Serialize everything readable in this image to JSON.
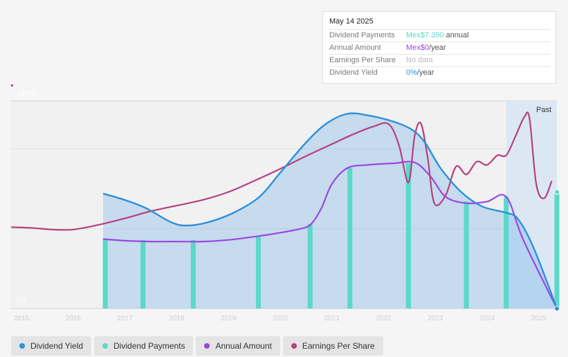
{
  "tooltip": {
    "date": "May 14 2025",
    "rows": [
      {
        "label": "Dividend Payments",
        "value": "Mex$7.350",
        "suffix": " annual",
        "color": "#5ad8c8"
      },
      {
        "label": "Annual Amount",
        "value": "Mex$0",
        "suffix": "/year",
        "color": "#9b45e4"
      },
      {
        "label": "Earnings Per Share",
        "value": "No data",
        "suffix": "",
        "color": "#bbbbbb"
      },
      {
        "label": "Dividend Yield",
        "value": "0%",
        "suffix": "/year",
        "color": "#2d8fdd"
      }
    ]
  },
  "legend": [
    {
      "label": "Dividend Yield",
      "color": "#2d8fdd"
    },
    {
      "label": "Dividend Payments",
      "color": "#5ad8c8"
    },
    {
      "label": "Annual Amount",
      "color": "#9b45e4"
    },
    {
      "label": "Earnings Per Share",
      "color": "#b5407f"
    }
  ],
  "chart_data": {
    "type": "line",
    "title": "",
    "xlabel": "",
    "ylabel": "",
    "x_range": [
      2014.8,
      2025.35
    ],
    "ylim": [
      0,
      13
    ],
    "y_tick_labels": [
      "13.0%",
      "0%"
    ],
    "x_tick_labels": [
      "2015",
      "2016",
      "2017",
      "2018",
      "2019",
      "2020",
      "2021",
      "2022",
      "2023",
      "2024",
      "2025"
    ],
    "past_label": "Past",
    "past_start": 2024.37,
    "colors": {
      "yield": "#2d8fdd",
      "payments": "#5ad8c8",
      "annual": "#9b45e4",
      "eps": "#b5407f"
    },
    "dividend_yield": {
      "x": [
        2016.58,
        2017.0,
        2017.4,
        2017.9,
        2018.2,
        2018.6,
        2019.1,
        2019.6,
        2020.0,
        2020.5,
        2020.9,
        2021.3,
        2021.7,
        2022.2,
        2022.55,
        2022.8,
        2023.1,
        2023.5,
        2023.9,
        2024.37,
        2024.6,
        2024.9,
        2025.35
      ],
      "y": [
        7.2,
        6.8,
        6.3,
        5.4,
        5.2,
        5.4,
        6.0,
        7.0,
        8.5,
        10.4,
        11.6,
        12.2,
        12.1,
        11.7,
        11.2,
        10.4,
        8.8,
        7.3,
        6.4,
        6.0,
        5.6,
        3.8,
        0
      ]
    },
    "annual_amount": {
      "x": [
        2016.58,
        2017.0,
        2017.5,
        2018.0,
        2018.5,
        2019.0,
        2019.5,
        2020.0,
        2020.4,
        2020.6,
        2020.8,
        2021.0,
        2021.3,
        2021.7,
        2022.2,
        2022.6,
        2022.9,
        2023.2,
        2023.6,
        2024.0,
        2024.37,
        2024.7,
        2025.35
      ],
      "y": [
        4.35,
        4.25,
        4.2,
        4.2,
        4.2,
        4.3,
        4.5,
        4.75,
        5.0,
        5.3,
        6.3,
        7.8,
        8.8,
        9.0,
        9.1,
        9.15,
        8.3,
        7.0,
        6.6,
        6.7,
        7.0,
        4.3,
        0
      ]
    },
    "earnings_per_share": {
      "x": [
        2014.8,
        2015.2,
        2015.6,
        2016.0,
        2016.5,
        2017.0,
        2017.5,
        2018.0,
        2018.5,
        2019.0,
        2019.5,
        2020.0,
        2020.5,
        2021.0,
        2021.4,
        2021.8,
        2022.1,
        2022.3,
        2022.48,
        2022.6,
        2022.72,
        2022.85,
        2022.98,
        2023.2,
        2023.4,
        2023.6,
        2023.8,
        2024.0,
        2024.2,
        2024.37,
        2024.55,
        2024.72,
        2024.82,
        2024.95,
        2025.1,
        2025.25
      ],
      "y": [
        5.1,
        5.05,
        4.95,
        4.95,
        5.25,
        5.65,
        6.1,
        6.45,
        6.8,
        7.3,
        8.0,
        8.75,
        9.55,
        10.3,
        10.9,
        11.4,
        11.55,
        10.2,
        7.9,
        10.8,
        11.6,
        9.5,
        6.6,
        7.1,
        8.9,
        8.4,
        9.2,
        9.0,
        9.6,
        9.6,
        10.8,
        12.0,
        11.9,
        7.8,
        6.9,
        8.0
      ]
    },
    "dividend_payments": {
      "x": [
        2016.62,
        2017.35,
        2018.32,
        2019.58,
        2020.58,
        2021.35,
        2022.48,
        2023.6,
        2024.37,
        2025.35
      ],
      "y": [
        4.35,
        4.3,
        4.3,
        4.5,
        5.3,
        8.8,
        9.1,
        6.7,
        7.0,
        7.3
      ]
    }
  }
}
